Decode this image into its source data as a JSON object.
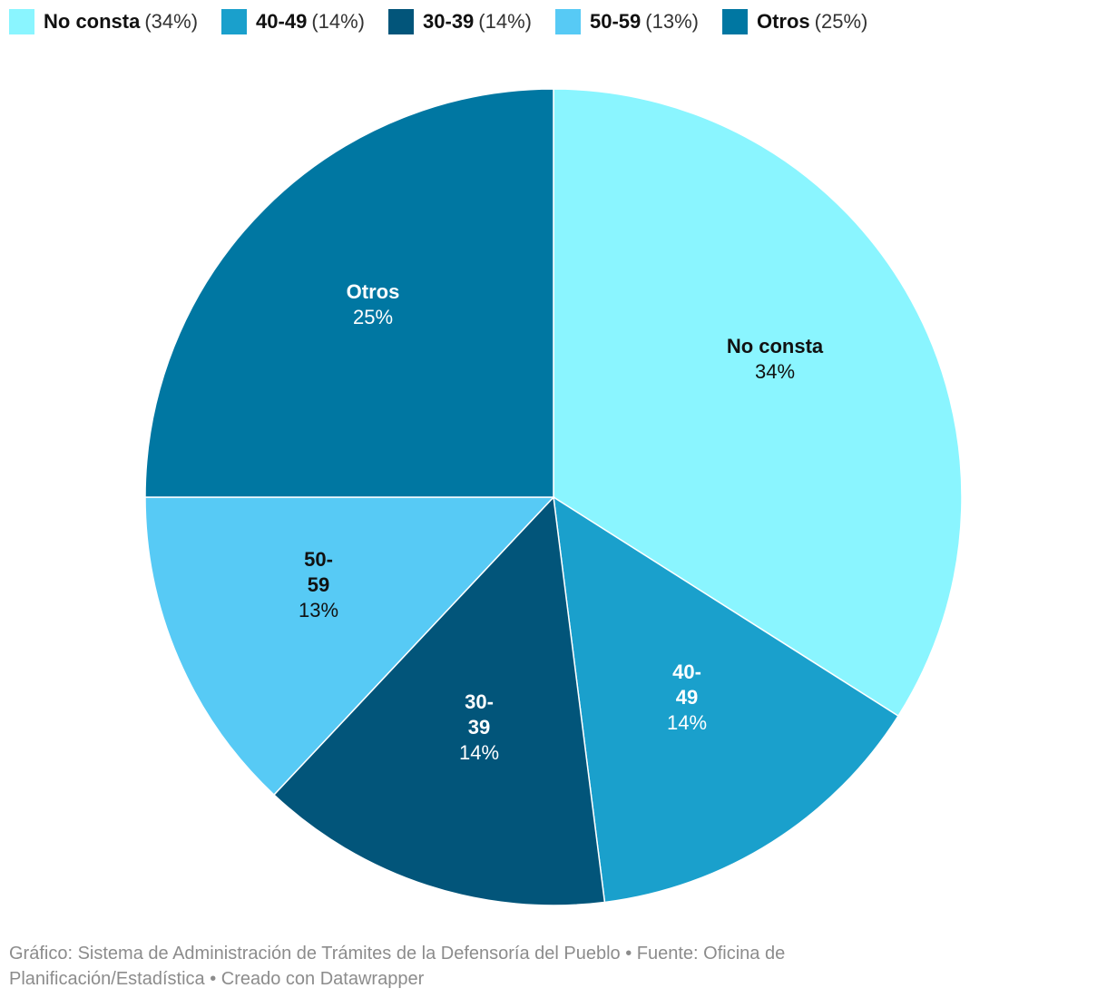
{
  "legend": {
    "items": [
      {
        "name": "No consta",
        "pct": "(34%)",
        "color": "#8af5ff"
      },
      {
        "name": "40-49",
        "pct": "(14%)",
        "color": "#1aa0cc"
      },
      {
        "name": "30-39",
        "pct": "(14%)",
        "color": "#02557a"
      },
      {
        "name": "50-59",
        "pct": "(13%)",
        "color": "#57caf5"
      },
      {
        "name": "Otros",
        "pct": "(25%)",
        "color": "#0077a2"
      }
    ]
  },
  "chart_data": {
    "type": "pie",
    "start_angle_deg": 0,
    "direction": "clockwise",
    "slices": [
      {
        "name": "No consta",
        "value": 34,
        "label_lines": [
          "No consta"
        ],
        "pct_label": "34%",
        "color": "#8af5ff",
        "text_color": "#111111"
      },
      {
        "name": "40-49",
        "value": 14,
        "label_lines": [
          "40-",
          "49"
        ],
        "pct_label": "14%",
        "color": "#1aa0cc",
        "text_color": "#ffffff"
      },
      {
        "name": "30-39",
        "value": 14,
        "label_lines": [
          "30-",
          "39"
        ],
        "pct_label": "14%",
        "color": "#02557a",
        "text_color": "#ffffff"
      },
      {
        "name": "50-59",
        "value": 13,
        "label_lines": [
          "50-",
          "59"
        ],
        "pct_label": "13%",
        "color": "#57caf5",
        "text_color": "#111111"
      },
      {
        "name": "Otros",
        "value": 25,
        "label_lines": [
          "Otros"
        ],
        "pct_label": "25%",
        "color": "#0077a2",
        "text_color": "#ffffff"
      }
    ]
  },
  "footer": {
    "text": "Gráfico: Sistema de Administración de Trámites de la Defensoría del Pueblo  • Fuente: Oficina de Planificación/Estadística • Creado con Datawrapper"
  }
}
